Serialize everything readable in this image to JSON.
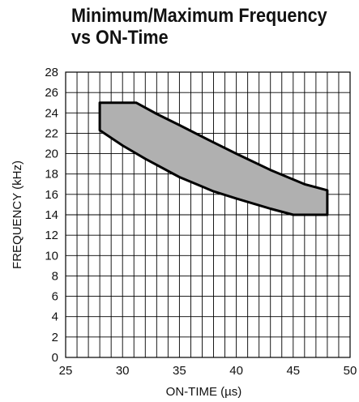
{
  "chart_data": {
    "type": "area",
    "title_lines": [
      "Minimum/Maximum Frequency",
      "vs ON-Time"
    ],
    "xlabel": "ON-TIME (µs)",
    "ylabel": "FREQUENCY (kHz)",
    "xlim": [
      25,
      50
    ],
    "ylim": [
      0,
      28
    ],
    "x_ticks": [
      "25",
      "30",
      "35",
      "40",
      "45",
      "50"
    ],
    "y_ticks": [
      "0",
      "2",
      "4",
      "6",
      "8",
      "10",
      "12",
      "14",
      "16",
      "18",
      "20",
      "22",
      "24",
      "26",
      "28"
    ],
    "grid": true,
    "region": {
      "fill": "#b0b0b0",
      "stroke": "#000000",
      "upper_boundary": [
        {
          "x": 28,
          "y": 25
        },
        {
          "x": 31.2,
          "y": 25
        },
        {
          "x": 33,
          "y": 23.9
        },
        {
          "x": 35,
          "y": 22.8
        },
        {
          "x": 38,
          "y": 21.1
        },
        {
          "x": 40,
          "y": 20
        },
        {
          "x": 43,
          "y": 18.4
        },
        {
          "x": 46,
          "y": 17
        },
        {
          "x": 48,
          "y": 16.4
        }
      ],
      "lower_boundary": [
        {
          "x": 28,
          "y": 22.3
        },
        {
          "x": 30,
          "y": 20.8
        },
        {
          "x": 32,
          "y": 19.5
        },
        {
          "x": 35,
          "y": 17.7
        },
        {
          "x": 38,
          "y": 16.3
        },
        {
          "x": 40,
          "y": 15.6
        },
        {
          "x": 43,
          "y": 14.6
        },
        {
          "x": 45,
          "y": 14
        },
        {
          "x": 48,
          "y": 14
        }
      ]
    }
  }
}
